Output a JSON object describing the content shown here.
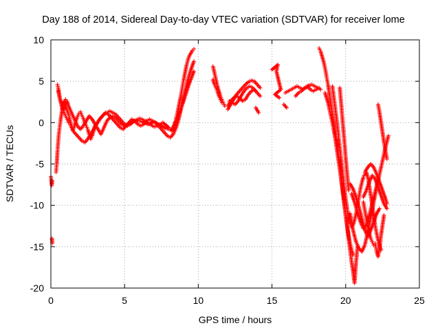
{
  "chart_data": {
    "type": "scatter",
    "title": "Day 188 of 2014, Sidereal Day-to-day VTEC variation (SDTVAR) for receiver lome",
    "xlabel": "GPS time / hours",
    "ylabel": "SDTVAR / TECUs",
    "xlim": [
      0,
      25
    ],
    "ylim": [
      -20,
      10
    ],
    "xticks": [
      0,
      5,
      10,
      15,
      20,
      25
    ],
    "yticks": [
      -20,
      -15,
      -10,
      -5,
      0,
      5,
      10
    ],
    "grid": true,
    "marker": "plus",
    "color": "#ff0000",
    "series": [
      {
        "name": "SDTVAR",
        "segments": [
          {
            "x": [
              0.0,
              0.03,
              0.06,
              0.09
            ],
            "y": [
              -6.5,
              -7.2,
              -7.6,
              -7.0
            ]
          },
          {
            "x": [
              0.07,
              0.1
            ],
            "y": [
              -14.0,
              -14.6
            ]
          },
          {
            "x": [
              0.35,
              0.4,
              0.45,
              0.5,
              0.55,
              0.6,
              0.65,
              0.7,
              0.75,
              0.8,
              0.9,
              1.0,
              1.1,
              1.2,
              1.3,
              1.4,
              1.5,
              1.6,
              1.7,
              1.8,
              1.9,
              2.0,
              2.1,
              2.2,
              2.3,
              2.4,
              2.5,
              2.6,
              2.7,
              2.8,
              2.9,
              3.0,
              3.2,
              3.4,
              3.6,
              3.8,
              4.0,
              4.2,
              4.4,
              4.6,
              4.8,
              5.0,
              5.2,
              5.4,
              5.6,
              5.8,
              6.0,
              6.2,
              6.4,
              6.6,
              6.8,
              7.0,
              7.2,
              7.4,
              7.6,
              7.8,
              8.0,
              8.1,
              8.2,
              8.3,
              8.4,
              8.5,
              8.6,
              8.7,
              8.8,
              8.9,
              9.0,
              9.1,
              9.2,
              9.3,
              9.4,
              9.5,
              9.6,
              9.7
            ],
            "y": [
              -6.0,
              -5.0,
              -3.5,
              -2.2,
              -1.2,
              -0.5,
              0.2,
              0.8,
              1.4,
              2.0,
              2.6,
              2.2,
              1.5,
              1.0,
              0.3,
              -0.4,
              -0.9,
              -0.4,
              0.2,
              0.7,
              1.1,
              1.3,
              0.9,
              0.5,
              0.0,
              -0.4,
              -0.8,
              -1.4,
              -2.0,
              -1.6,
              -1.0,
              -0.4,
              0.1,
              0.6,
              1.0,
              1.2,
              1.4,
              1.2,
              1.0,
              0.6,
              0.2,
              -0.2,
              -0.4,
              -0.2,
              0.1,
              0.3,
              0.5,
              0.4,
              0.2,
              -0.1,
              -0.3,
              -0.5,
              -0.4,
              -0.2,
              0.0,
              -0.3,
              -0.6,
              -0.8,
              -1.0,
              -0.7,
              -0.2,
              0.5,
              1.3,
              2.2,
              3.1,
              4.1,
              5.1,
              6.0,
              6.9,
              7.6,
              8.1,
              8.4,
              8.7,
              8.9
            ]
          },
          {
            "x": [
              0.45,
              0.5,
              0.55,
              0.6,
              0.7,
              0.8,
              0.9,
              1.0,
              1.1,
              1.2,
              1.3,
              1.4,
              1.5,
              1.7,
              1.9,
              2.1,
              2.3,
              2.5,
              2.7,
              2.9,
              3.1,
              3.3,
              3.5,
              3.7,
              3.9,
              4.1,
              4.3,
              4.5,
              4.7,
              4.9,
              5.1,
              5.3,
              5.5,
              5.7,
              5.9,
              6.1,
              6.3,
              6.5,
              6.7,
              6.9,
              7.1,
              7.3,
              7.5,
              7.7,
              7.9,
              8.1,
              8.3,
              8.5,
              8.7,
              8.9,
              9.1,
              9.3,
              9.5,
              9.7
            ],
            "y": [
              4.6,
              4.2,
              3.6,
              3.0,
              2.2,
              1.6,
              1.2,
              0.8,
              0.4,
              0.0,
              -0.2,
              -0.6,
              -1.0,
              -1.4,
              -1.8,
              -2.2,
              -2.4,
              -2.0,
              -1.4,
              -0.8,
              -0.2,
              0.4,
              0.8,
              1.2,
              1.0,
              0.6,
              0.2,
              -0.2,
              -0.6,
              -0.8,
              -0.4,
              0.0,
              0.4,
              0.2,
              -0.2,
              -0.4,
              -0.2,
              0.2,
              0.4,
              0.2,
              0.0,
              -0.4,
              -0.8,
              -1.2,
              -1.6,
              -1.8,
              -1.4,
              -0.6,
              0.6,
              2.2,
              3.8,
              5.2,
              6.4,
              7.4
            ]
          },
          {
            "x": [
              0.5,
              0.6,
              0.7,
              0.8,
              0.9,
              1.0,
              1.1,
              1.2,
              1.4,
              1.6,
              1.8,
              2.0,
              2.2,
              2.4,
              2.6,
              2.8,
              3.0,
              3.2,
              3.4,
              3.6,
              3.8,
              4.0,
              4.2,
              4.4,
              4.6,
              4.8,
              5.0,
              5.4,
              5.8,
              6.2,
              6.6,
              7.0,
              7.4,
              7.8,
              8.2,
              8.6,
              9.0,
              9.4,
              9.7
            ],
            "y": [
              3.8,
              3.0,
              2.4,
              2.0,
              1.6,
              2.8,
              2.6,
              2.0,
              1.2,
              0.4,
              -0.4,
              -0.8,
              -0.4,
              0.2,
              0.8,
              0.4,
              -0.2,
              -0.8,
              -1.4,
              -0.6,
              0.2,
              0.6,
              0.8,
              0.6,
              0.2,
              -0.2,
              -0.4,
              0.0,
              0.3,
              0.1,
              -0.2,
              0.1,
              -0.3,
              -0.7,
              -0.9,
              0.6,
              2.6,
              4.8,
              6.2
            ]
          },
          {
            "x": [
              11.0,
              11.1,
              11.2,
              11.3,
              11.4,
              11.5,
              11.6,
              11.7,
              11.8
            ],
            "y": [
              6.8,
              6.0,
              5.2,
              4.4,
              3.8,
              3.2,
              2.8,
              2.4,
              2.0
            ]
          },
          {
            "x": [
              11.0,
              11.1,
              11.2,
              11.3,
              11.4,
              11.5,
              11.6
            ],
            "y": [
              5.2,
              4.6,
              4.2,
              3.8,
              3.2,
              2.8,
              2.4
            ]
          },
          {
            "x": [
              12.0,
              12.2,
              12.4,
              12.6,
              12.8,
              13.0,
              13.2,
              13.4,
              13.6,
              13.8,
              14.0,
              14.2
            ],
            "y": [
              1.6,
              2.2,
              2.8,
              3.4,
              3.8,
              4.2,
              4.6,
              4.9,
              5.1,
              5.0,
              4.6,
              4.2
            ]
          },
          {
            "x": [
              12.0,
              12.2,
              12.4,
              12.6,
              12.8,
              13.0,
              13.2,
              13.4,
              13.6,
              13.8,
              14.0,
              14.2
            ],
            "y": [
              2.0,
              2.6,
              3.0,
              3.2,
              3.0,
              2.6,
              2.8,
              3.4,
              3.8,
              4.0,
              3.6,
              3.2
            ]
          },
          {
            "x": [
              12.1,
              12.3,
              12.5,
              12.7,
              12.9,
              13.1,
              13.3,
              13.5,
              13.7,
              13.9
            ],
            "y": [
              2.6,
              2.4,
              2.2,
              2.6,
              3.2,
              3.8,
              4.2,
              4.4,
              4.2,
              3.8
            ]
          },
          {
            "x": [
              13.9,
              14.0,
              14.1
            ],
            "y": [
              1.8,
              1.5,
              1.2
            ]
          },
          {
            "x": [
              15.0,
              15.4,
              15.3,
              15.6,
              15.2,
              15.5
            ],
            "y": [
              6.4,
              7.0,
              6.2,
              4.0,
              3.4,
              3.0
            ]
          },
          {
            "x": [
              15.9,
              16.1,
              16.3,
              16.5,
              16.7,
              16.9,
              17.1,
              17.3,
              17.5,
              17.7,
              17.9,
              18.1,
              18.3
            ],
            "y": [
              3.6,
              3.8,
              4.0,
              4.2,
              4.4,
              4.2,
              4.0,
              4.2,
              4.5,
              4.6,
              4.4,
              4.2,
              4.0
            ]
          },
          {
            "x": [
              15.8,
              16.0
            ],
            "y": [
              2.2,
              1.8
            ]
          },
          {
            "x": [
              16.6,
              16.8,
              17.0,
              17.2,
              17.4,
              17.6,
              17.8,
              18.0,
              18.2
            ],
            "y": [
              3.2,
              3.6,
              3.8,
              4.2,
              4.4,
              4.0,
              3.8,
              4.0,
              4.2
            ]
          },
          {
            "x": [
              18.2,
              18.3,
              18.4,
              18.5,
              18.6,
              18.7,
              18.8,
              18.9,
              19.0,
              19.1,
              19.2,
              19.3,
              19.4,
              19.5,
              19.6,
              19.7,
              19.8,
              19.9,
              20.0,
              20.1,
              20.2,
              20.3,
              20.4,
              20.5,
              20.6,
              20.7,
              20.8
            ],
            "y": [
              9.0,
              8.6,
              8.0,
              7.4,
              6.6,
              5.6,
              4.6,
              3.4,
              2.2,
              1.0,
              -0.2,
              -1.4,
              -2.6,
              -3.8,
              -5.0,
              -6.4,
              -8.0,
              -9.6,
              -11.2,
              -12.6,
              -14.0,
              -15.4,
              -16.8,
              -18.0,
              -19.4,
              -17.0,
              -15.0
            ]
          },
          {
            "x": [
              18.6,
              18.7,
              18.8,
              18.9,
              19.0,
              19.1,
              19.2,
              19.3,
              19.4,
              19.5,
              19.6,
              19.7,
              19.8,
              19.9,
              20.0,
              20.1,
              20.2,
              20.3,
              20.4,
              20.5
            ],
            "y": [
              3.6,
              3.0,
              2.4,
              1.6,
              0.8,
              0.0,
              -1.0,
              -2.0,
              -3.2,
              -4.4,
              -5.6,
              -7.0,
              -8.4,
              -9.8,
              -11.2,
              -12.4,
              -13.6,
              -14.6,
              -15.4,
              -16.0
            ]
          },
          {
            "x": [
              19.1,
              19.2,
              19.3,
              19.4,
              19.5,
              19.6,
              19.7,
              19.8,
              19.9,
              20.0,
              20.1,
              20.2,
              20.3,
              20.4,
              20.5,
              20.6,
              20.7,
              20.8,
              20.9,
              21.0,
              21.1,
              21.2,
              21.3,
              21.4,
              21.5,
              21.6,
              21.7,
              21.8,
              21.9,
              22.0,
              22.1,
              22.2,
              22.3,
              22.4
            ],
            "y": [
              4.4,
              3.0,
              1.6,
              0.2,
              -1.4,
              -3.0,
              -4.6,
              -6.2,
              -7.8,
              -9.2,
              -10.4,
              -11.4,
              -12.2,
              -12.6,
              -12.4,
              -11.8,
              -11.0,
              -10.0,
              -9.0,
              -8.0,
              -7.2,
              -6.6,
              -6.2,
              -6.0,
              -6.6,
              -7.6,
              -8.8,
              -10.0,
              -11.2,
              -12.4,
              -13.4,
              -14.2,
              -14.8,
              -15.4
            ]
          },
          {
            "x": [
              19.6,
              19.7,
              19.8,
              19.9,
              20.0,
              20.1,
              20.2
            ],
            "y": [
              4.2,
              2.2,
              0.0,
              -2.0,
              -4.2,
              -6.2,
              -8.2
            ]
          },
          {
            "x": [
              20.3,
              20.5,
              20.7,
              20.9,
              21.1,
              21.3,
              21.5,
              21.7,
              21.9,
              22.1,
              22.3,
              22.5,
              22.7,
              22.9
            ],
            "y": [
              -11.0,
              -13.0,
              -14.4,
              -15.2,
              -15.6,
              -14.8,
              -13.2,
              -11.4,
              -9.6,
              -7.8,
              -6.2,
              -4.6,
              -3.0,
              -1.6
            ]
          },
          {
            "x": [
              20.3,
              20.5,
              20.7,
              20.9,
              21.1,
              21.3,
              21.5,
              21.7,
              21.9,
              22.1,
              22.3
            ],
            "y": [
              -7.4,
              -8.0,
              -9.0,
              -10.2,
              -11.6,
              -13.0,
              -13.8,
              -13.0,
              -12.0,
              -11.0,
              -10.4
            ]
          },
          {
            "x": [
              20.4,
              20.6,
              20.8,
              21.0,
              21.2,
              21.4,
              21.6,
              21.8,
              22.0,
              22.2
            ],
            "y": [
              -8.6,
              -9.6,
              -10.8,
              -12.0,
              -12.8,
              -12.4,
              -11.2,
              -9.8,
              -8.4,
              -7.0
            ]
          },
          {
            "x": [
              21.2,
              21.4,
              21.6,
              21.8,
              22.0,
              22.2,
              22.4,
              22.6,
              22.8
            ],
            "y": [
              -9.0,
              -8.2,
              -7.2,
              -6.4,
              -6.8,
              -7.8,
              -8.8,
              -9.8,
              -10.4
            ]
          },
          {
            "x": [
              21.3,
              21.5,
              21.7,
              21.9,
              22.1,
              22.3,
              22.5,
              22.7,
              22.8
            ],
            "y": [
              -6.0,
              -5.4,
              -5.0,
              -5.4,
              -6.2,
              -7.2,
              -8.2,
              -9.2,
              -9.8
            ]
          },
          {
            "x": [
              22.2,
              22.3,
              22.4,
              22.5,
              22.6,
              22.7,
              22.8
            ],
            "y": [
              2.2,
              1.2,
              0.0,
              -1.2,
              -2.4,
              -3.4,
              -4.4
            ]
          },
          {
            "x": [
              22.0,
              22.1,
              22.2,
              22.3,
              22.4,
              22.5,
              22.6
            ],
            "y": [
              -14.6,
              -15.6,
              -16.2,
              -15.2,
              -13.6,
              -12.4,
              -11.2
            ]
          },
          {
            "x": [
              21.2,
              21.3,
              21.4,
              21.5,
              21.6,
              21.7,
              21.8,
              21.9
            ],
            "y": [
              -9.6,
              -10.6,
              -11.6,
              -12.6,
              -13.4,
              -14.0,
              -14.4,
              -14.8
            ]
          }
        ]
      }
    ]
  }
}
